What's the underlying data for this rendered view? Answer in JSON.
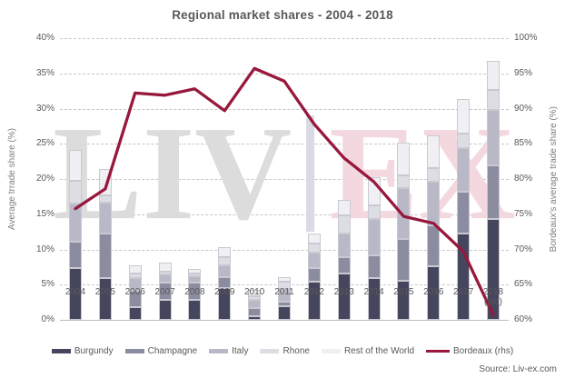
{
  "title": "Regional market shares - 2004 - 2018",
  "source": "Source: Liv-ex.com",
  "watermark": {
    "part1": "LIV",
    "part2": "EX"
  },
  "chart_data": {
    "type": "bar",
    "subtype": "stacked-columns-with-line-overlay",
    "title": "Regional market shares - 2004 - 2018",
    "categories": [
      "2004",
      "2005",
      "2006",
      "2007",
      "2008",
      "2009",
      "2010",
      "2011",
      "2012",
      "2013",
      "2014",
      "2015",
      "2016",
      "2017",
      "2018"
    ],
    "last_category_note": "(ytd)",
    "left_axis": {
      "label": "Average trrade share (%)",
      "min": 0,
      "max": 40,
      "tick_step": 5,
      "tick_suffix": "%"
    },
    "right_axis": {
      "label": "Bordeaux's average trade share (%)",
      "min": 60,
      "max": 100,
      "tick_step": 5,
      "tick_suffix": "%"
    },
    "grid": {
      "horizontal": true,
      "style": "dashed",
      "color": "#c7c7c7"
    },
    "legend_position": "bottom",
    "series": [
      {
        "name": "Burgundy",
        "role": "stack",
        "axis": "left",
        "color": "#45455e",
        "values": [
          7.4,
          6.0,
          1.8,
          2.8,
          2.9,
          4.5,
          0.5,
          2.0,
          5.4,
          6.6,
          6.0,
          5.6,
          7.6,
          12.2,
          14.3
        ]
      },
      {
        "name": "Champagne",
        "role": "stack",
        "axis": "left",
        "color": "#8c8ca1",
        "values": [
          3.7,
          6.3,
          2.3,
          2.5,
          2.4,
          1.6,
          1.2,
          0.6,
          1.9,
          2.3,
          3.1,
          5.9,
          5.8,
          6.0,
          7.7
        ]
      },
      {
        "name": "Italy",
        "role": "stack",
        "axis": "left",
        "color": "#b8b8c7",
        "values": [
          5.4,
          4.3,
          1.9,
          1.1,
          0.9,
          1.6,
          1.1,
          1.8,
          2.2,
          3.3,
          5.2,
          7.2,
          6.2,
          6.2,
          7.8
        ]
      },
      {
        "name": "Rhone",
        "role": "stack",
        "axis": "left",
        "color": "#dddde4",
        "values": [
          3.2,
          1.1,
          0.6,
          0.5,
          0.4,
          1.2,
          0.6,
          1.0,
          1.4,
          2.7,
          1.9,
          1.8,
          1.9,
          2.0,
          2.9
        ]
      },
      {
        "name": "Rest of the World",
        "role": "stack",
        "axis": "left",
        "color": "#f0f0f4",
        "values": [
          4.4,
          3.7,
          1.2,
          1.2,
          0.6,
          1.4,
          0.9,
          0.7,
          1.3,
          2.1,
          4.1,
          4.7,
          4.7,
          5.0,
          4.1
        ]
      },
      {
        "name": "Bordeaux (rhs)",
        "role": "line",
        "axis": "right",
        "color": "#98183c",
        "values": [
          75.8,
          78.6,
          92.2,
          91.9,
          92.8,
          89.7,
          95.7,
          93.9,
          87.8,
          83.0,
          79.6,
          74.7,
          73.7,
          69.7,
          60.7
        ]
      }
    ]
  }
}
